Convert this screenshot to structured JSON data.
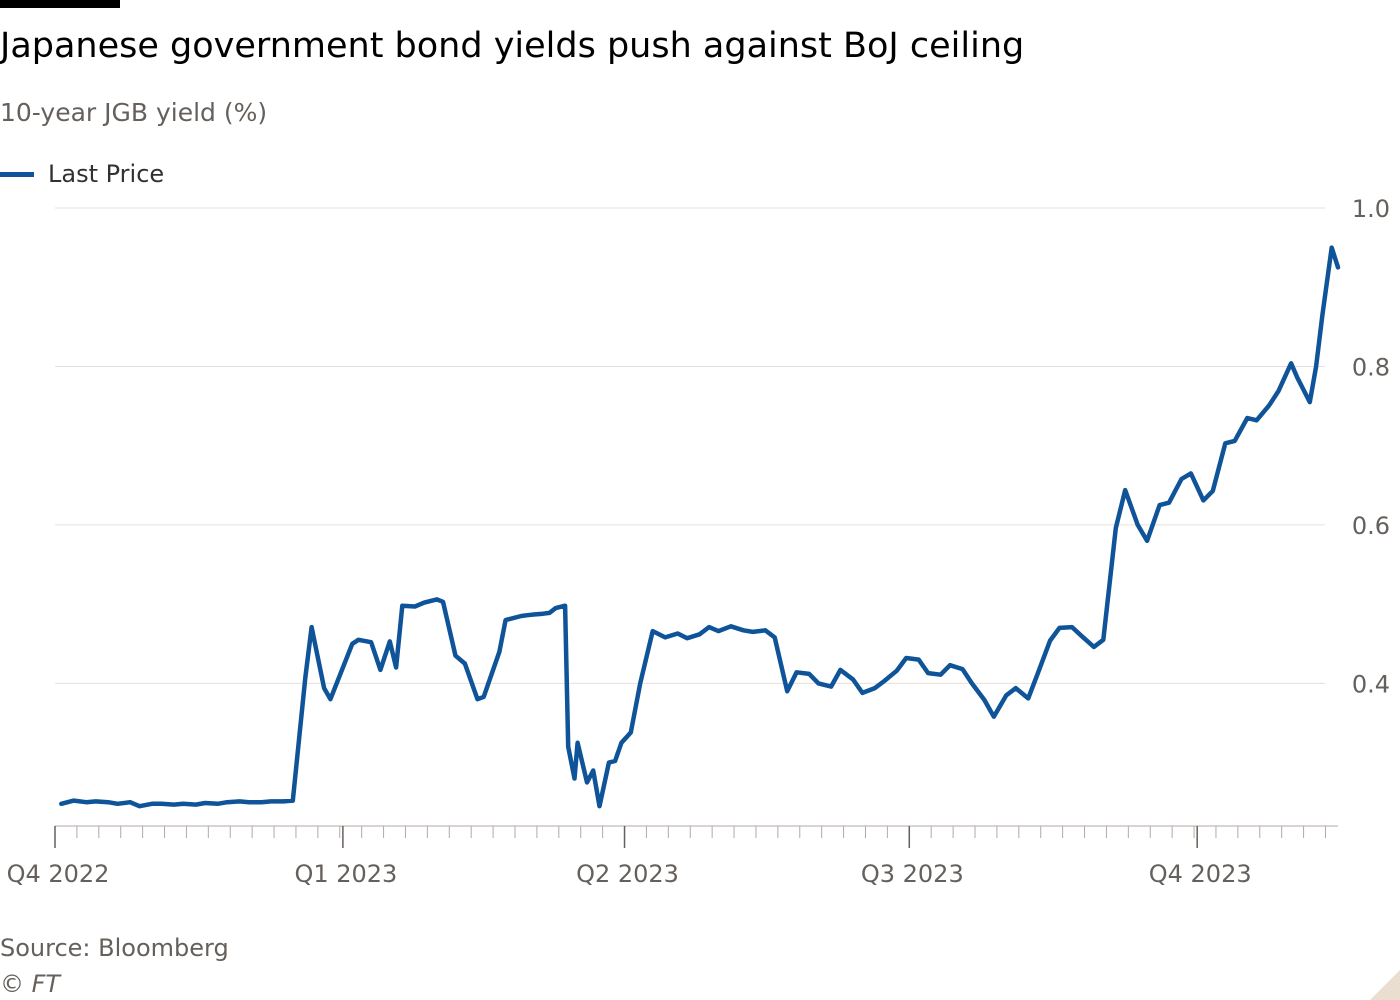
{
  "header": {
    "title": "Japanese government bond yields push against BoJ ceiling",
    "subtitle": "10-year JGB yield (%)"
  },
  "legend": {
    "label": "Last Price"
  },
  "footer": {
    "source": "Source: Bloomberg",
    "copyright": "© FT"
  },
  "colors": {
    "series": "#0f5499",
    "gridline": "#e6e0da",
    "axis": "#b3aaa3",
    "text": "#66605c",
    "corner": "#e9decf"
  },
  "chart_data": {
    "type": "line",
    "title": "Japanese government bond yields push against BoJ ceiling",
    "subtitle": "10-year JGB yield (%)",
    "ylim": [
      0.22,
      1.0
    ],
    "yticks": [
      0.4,
      0.6,
      0.8,
      1.0
    ],
    "yticklabels": [
      "0.4",
      "0.6",
      "0.8",
      "1.0"
    ],
    "xlim": [
      "2022-10-01",
      "2023-11-15"
    ],
    "xticks": [
      {
        "date": "2022-10-01",
        "label": "Q4 2022"
      },
      {
        "date": "2023-01-01",
        "label": "Q1 2023"
      },
      {
        "date": "2023-04-01",
        "label": "Q2 2023"
      },
      {
        "date": "2023-07-01",
        "label": "Q3 2023"
      },
      {
        "date": "2023-10-01",
        "label": "Q4 2023"
      }
    ],
    "grid": true,
    "legend_position": "top-left",
    "series": [
      {
        "name": "Last Price",
        "points": [
          [
            "2022-10-03",
            0.248
          ],
          [
            "2022-10-07",
            0.252
          ],
          [
            "2022-10-11",
            0.25
          ],
          [
            "2022-10-14",
            0.251
          ],
          [
            "2022-10-18",
            0.25
          ],
          [
            "2022-10-21",
            0.248
          ],
          [
            "2022-10-25",
            0.25
          ],
          [
            "2022-10-28",
            0.245
          ],
          [
            "2022-11-01",
            0.248
          ],
          [
            "2022-11-04",
            0.248
          ],
          [
            "2022-11-08",
            0.247
          ],
          [
            "2022-11-11",
            0.248
          ],
          [
            "2022-11-15",
            0.247
          ],
          [
            "2022-11-18",
            0.249
          ],
          [
            "2022-11-22",
            0.248
          ],
          [
            "2022-11-25",
            0.25
          ],
          [
            "2022-11-29",
            0.251
          ],
          [
            "2022-12-02",
            0.25
          ],
          [
            "2022-12-06",
            0.25
          ],
          [
            "2022-12-09",
            0.251
          ],
          [
            "2022-12-13",
            0.251
          ],
          [
            "2022-12-16",
            0.252
          ],
          [
            "2022-12-20",
            0.407
          ],
          [
            "2022-12-22",
            0.471
          ],
          [
            "2022-12-26",
            0.394
          ],
          [
            "2022-12-28",
            0.38
          ],
          [
            "2023-01-04",
            0.45
          ],
          [
            "2023-01-06",
            0.455
          ],
          [
            "2023-01-10",
            0.452
          ],
          [
            "2023-01-13",
            0.417
          ],
          [
            "2023-01-16",
            0.453
          ],
          [
            "2023-01-18",
            0.42
          ],
          [
            "2023-01-20",
            0.498
          ],
          [
            "2023-01-24",
            0.497
          ],
          [
            "2023-01-27",
            0.502
          ],
          [
            "2023-01-31",
            0.506
          ],
          [
            "2023-02-02",
            0.503
          ],
          [
            "2023-02-06",
            0.435
          ],
          [
            "2023-02-09",
            0.425
          ],
          [
            "2023-02-13",
            0.38
          ],
          [
            "2023-02-15",
            0.383
          ],
          [
            "2023-02-20",
            0.44
          ],
          [
            "2023-02-22",
            0.48
          ],
          [
            "2023-02-27",
            0.485
          ],
          [
            "2023-03-01",
            0.486
          ],
          [
            "2023-03-03",
            0.487
          ],
          [
            "2023-03-06",
            0.488
          ],
          [
            "2023-03-08",
            0.489
          ],
          [
            "2023-03-10",
            0.495
          ],
          [
            "2023-03-13",
            0.498
          ],
          [
            "2023-03-14",
            0.32
          ],
          [
            "2023-03-16",
            0.28
          ],
          [
            "2023-03-17",
            0.325
          ],
          [
            "2023-03-20",
            0.275
          ],
          [
            "2023-03-22",
            0.29
          ],
          [
            "2023-03-24",
            0.245
          ],
          [
            "2023-03-27",
            0.3
          ],
          [
            "2023-03-29",
            0.302
          ],
          [
            "2023-03-31",
            0.325
          ],
          [
            "2023-04-03",
            0.338
          ],
          [
            "2023-04-06",
            0.4
          ],
          [
            "2023-04-10",
            0.466
          ],
          [
            "2023-04-14",
            0.458
          ],
          [
            "2023-04-18",
            0.463
          ],
          [
            "2023-04-21",
            0.457
          ],
          [
            "2023-04-25",
            0.462
          ],
          [
            "2023-04-28",
            0.471
          ],
          [
            "2023-05-01",
            0.466
          ],
          [
            "2023-05-05",
            0.472
          ],
          [
            "2023-05-09",
            0.467
          ],
          [
            "2023-05-12",
            0.465
          ],
          [
            "2023-05-16",
            0.467
          ],
          [
            "2023-05-19",
            0.458
          ],
          [
            "2023-05-23",
            0.39
          ],
          [
            "2023-05-26",
            0.414
          ],
          [
            "2023-05-30",
            0.412
          ],
          [
            "2023-06-02",
            0.4
          ],
          [
            "2023-06-06",
            0.396
          ],
          [
            "2023-06-09",
            0.417
          ],
          [
            "2023-06-13",
            0.405
          ],
          [
            "2023-06-16",
            0.388
          ],
          [
            "2023-06-20",
            0.394
          ],
          [
            "2023-06-23",
            0.403
          ],
          [
            "2023-06-27",
            0.416
          ],
          [
            "2023-06-30",
            0.432
          ],
          [
            "2023-07-04",
            0.43
          ],
          [
            "2023-07-07",
            0.413
          ],
          [
            "2023-07-11",
            0.411
          ],
          [
            "2023-07-14",
            0.423
          ],
          [
            "2023-07-18",
            0.418
          ],
          [
            "2023-07-21",
            0.4
          ],
          [
            "2023-07-25",
            0.379
          ],
          [
            "2023-07-28",
            0.358
          ],
          [
            "2023-08-01",
            0.385
          ],
          [
            "2023-08-04",
            0.394
          ],
          [
            "2023-08-08",
            0.381
          ],
          [
            "2023-08-11",
            0.412
          ],
          [
            "2023-08-15",
            0.454
          ],
          [
            "2023-08-18",
            0.47
          ],
          [
            "2023-08-22",
            0.471
          ],
          [
            "2023-08-25",
            0.46
          ],
          [
            "2023-08-29",
            0.446
          ],
          [
            "2023-09-01",
            0.455
          ],
          [
            "2023-09-05",
            0.596
          ],
          [
            "2023-09-08",
            0.644
          ],
          [
            "2023-09-12",
            0.6
          ],
          [
            "2023-09-15",
            0.58
          ],
          [
            "2023-09-19",
            0.625
          ],
          [
            "2023-09-22",
            0.628
          ],
          [
            "2023-09-26",
            0.658
          ],
          [
            "2023-09-29",
            0.665
          ],
          [
            "2023-10-03",
            0.631
          ],
          [
            "2023-10-06",
            0.643
          ],
          [
            "2023-10-10",
            0.703
          ],
          [
            "2023-10-13",
            0.706
          ],
          [
            "2023-10-17",
            0.735
          ],
          [
            "2023-10-20",
            0.732
          ],
          [
            "2023-10-24",
            0.751
          ],
          [
            "2023-10-27",
            0.769
          ],
          [
            "2023-10-31",
            0.804
          ],
          [
            "2023-11-02",
            0.786
          ],
          [
            "2023-11-06",
            0.755
          ],
          [
            "2023-11-08",
            0.8
          ],
          [
            "2023-11-10",
            0.865
          ],
          [
            "2023-11-13",
            0.95
          ],
          [
            "2023-11-15",
            0.925
          ]
        ]
      }
    ]
  }
}
